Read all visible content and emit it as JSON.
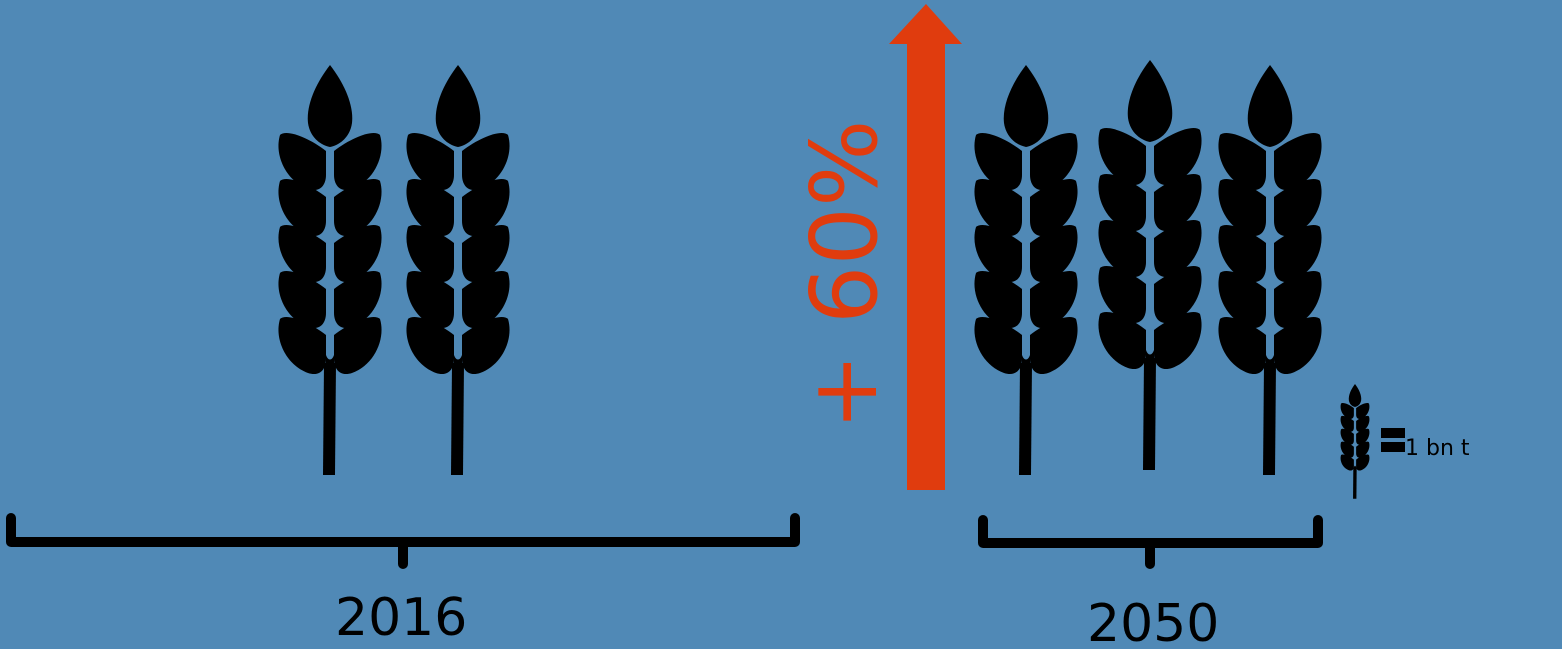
{
  "groups": [
    {
      "year": "2016",
      "count": 2
    },
    {
      "year": "2050",
      "count": 3
    }
  ],
  "change": {
    "label": "+ 60%",
    "color": "#e03c0e"
  },
  "legend": {
    "icon": "wheat-icon",
    "symbol": "equals",
    "text": "1 bn t"
  },
  "colors": {
    "background": "#5089b6",
    "icon": "#000000",
    "arrow": "#e03c0e"
  }
}
